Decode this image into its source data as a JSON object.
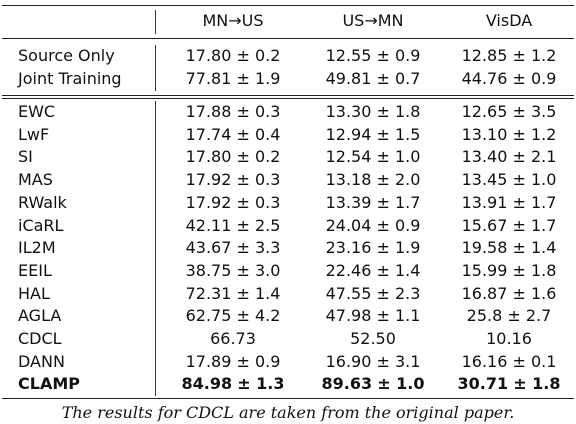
{
  "table": {
    "headers": [
      "",
      "MN→US",
      "US→MN",
      "VisDA"
    ],
    "groups": [
      {
        "rows": [
          {
            "method": "Source Only",
            "v1": "17.80",
            "e1": "± 0.2",
            "v2": "12.55",
            "e2": "± 0.9",
            "v3": "12.85",
            "e3": "± 1.2",
            "bold": false
          },
          {
            "method": "Joint Training",
            "v1": "77.81",
            "e1": "± 1.9",
            "v2": "49.81",
            "e2": "± 0.7",
            "v3": "44.76",
            "e3": "± 0.9",
            "bold": false
          }
        ]
      },
      {
        "rows": [
          {
            "method": "EWC",
            "v1": "17.88",
            "e1": "± 0.3",
            "v2": "13.30",
            "e2": "± 1.8",
            "v3": "12.65",
            "e3": "± 3.5",
            "bold": false
          },
          {
            "method": "LwF",
            "v1": "17.74",
            "e1": "± 0.4",
            "v2": "12.94",
            "e2": "± 1.5",
            "v3": "13.10",
            "e3": "± 1.2",
            "bold": false
          },
          {
            "method": "SI",
            "v1": "17.80",
            "e1": "± 0.2",
            "v2": "12.54",
            "e2": "± 1.0",
            "v3": "13.40",
            "e3": "± 2.1",
            "bold": false
          },
          {
            "method": "MAS",
            "v1": "17.92",
            "e1": "± 0.3",
            "v2": "13.18",
            "e2": "± 2.0",
            "v3": "13.45",
            "e3": "± 1.0",
            "bold": false
          },
          {
            "method": "RWalk",
            "v1": "17.92",
            "e1": "± 0.3",
            "v2": "13.39",
            "e2": "± 1.7",
            "v3": "13.91",
            "e3": "± 1.7",
            "bold": false
          },
          {
            "method": "iCaRL",
            "v1": "42.11",
            "e1": "± 2.5",
            "v2": "24.04",
            "e2": "± 0.9",
            "v3": "15.67",
            "e3": "± 1.7",
            "bold": false
          },
          {
            "method": "IL2M",
            "v1": "43.67",
            "e1": "± 3.3",
            "v2": "23.16",
            "e2": "± 1.9",
            "v3": "19.58",
            "e3": "± 1.4",
            "bold": false
          },
          {
            "method": "EEIL",
            "v1": "38.75",
            "e1": "± 3.0",
            "v2": "22.46",
            "e2": "± 1.4",
            "v3": "15.99",
            "e3": "± 1.8",
            "bold": false
          },
          {
            "method": "HAL",
            "v1": "72.31",
            "e1": "± 1.4",
            "v2": "47.55",
            "e2": "± 2.3",
            "v3": "16.87",
            "e3": "± 1.6",
            "bold": false
          },
          {
            "method": "AGLA",
            "v1": "62.75",
            "e1": "± 4.2",
            "v2": "47.98",
            "e2": "± 1.1",
            "v3": "25.8",
            "e3": "± 2.7",
            "bold": false
          },
          {
            "method": "CDCL",
            "v1": "66.73",
            "e1": "",
            "v2": "52.50",
            "e2": "",
            "v3": "10.16",
            "e3": "",
            "bold": false
          },
          {
            "method": "DANN",
            "v1": "17.89",
            "e1": "± 0.9",
            "v2": "16.90",
            "e2": "± 3.1",
            "v3": "16.16",
            "e3": "± 0.1",
            "bold": false
          },
          {
            "method": "CLAMP",
            "v1": "84.98",
            "e1": "± 1.3",
            "v2": "89.63",
            "e2": "± 1.0",
            "v3": "30.71",
            "e3": "± 1.8",
            "bold": true
          }
        ]
      }
    ]
  },
  "caption": "The results for CDCL are taken from the original paper."
}
